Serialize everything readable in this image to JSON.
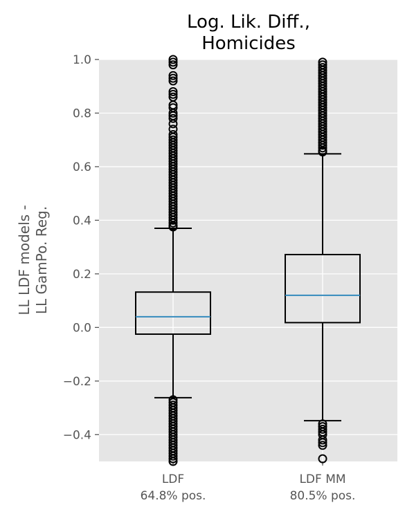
{
  "chart_data": {
    "type": "box",
    "title_lines": [
      "Log. Lik. Diff.,",
      "Homicides"
    ],
    "ylabel_lines": [
      "LL LDF models -",
      "LL GamPo. Reg."
    ],
    "ylim": [
      -0.5,
      1.0
    ],
    "yticks": [
      {
        "value": 1.0,
        "label": "1.0"
      },
      {
        "value": 0.8,
        "label": "0.8"
      },
      {
        "value": 0.6,
        "label": "0.6"
      },
      {
        "value": 0.4,
        "label": "0.4"
      },
      {
        "value": 0.2,
        "label": "0.2"
      },
      {
        "value": 0.0,
        "label": "0.0"
      },
      {
        "value": -0.2,
        "label": "−0.2"
      },
      {
        "value": -0.4,
        "label": "−0.4"
      }
    ],
    "grid": true,
    "colors": {
      "background": "#e5e5e5",
      "grid": "#ffffff",
      "box": "#000000",
      "median": "#348abd",
      "tick_text": "#555555"
    },
    "boxes": [
      {
        "label_lines": [
          "LDF",
          "64.8% pos."
        ],
        "q1": -0.025,
        "median": 0.04,
        "q3": 0.132,
        "whisker_low": -0.262,
        "whisker_high": 0.37,
        "outliers": [
          1.0,
          0.99,
          0.98,
          0.94,
          0.93,
          0.92,
          0.88,
          0.87,
          0.86,
          0.83,
          0.82,
          0.8,
          0.79,
          0.78,
          0.76,
          0.74,
          0.72,
          0.71,
          0.7,
          0.69,
          0.68,
          0.67,
          0.66,
          0.65,
          0.64,
          0.63,
          0.62,
          0.61,
          0.6,
          0.59,
          0.58,
          0.57,
          0.56,
          0.55,
          0.54,
          0.53,
          0.52,
          0.51,
          0.5,
          0.49,
          0.48,
          0.47,
          0.46,
          0.45,
          0.44,
          0.43,
          0.42,
          0.41,
          0.4,
          0.39,
          0.38,
          0.375,
          -0.27,
          -0.28,
          -0.29,
          -0.3,
          -0.31,
          -0.32,
          -0.33,
          -0.34,
          -0.35,
          -0.36,
          -0.37,
          -0.38,
          -0.39,
          -0.4,
          -0.41,
          -0.42,
          -0.43,
          -0.44,
          -0.45,
          -0.46,
          -0.47,
          -0.48,
          -0.49,
          -0.5
        ]
      },
      {
        "label_lines": [
          "LDF MM",
          "80.5% pos."
        ],
        "q1": 0.018,
        "median": 0.12,
        "q3": 0.272,
        "whisker_low": -0.348,
        "whisker_high": 0.648,
        "outliers": [
          0.99,
          0.98,
          0.97,
          0.96,
          0.95,
          0.94,
          0.93,
          0.92,
          0.91,
          0.9,
          0.89,
          0.88,
          0.87,
          0.86,
          0.85,
          0.84,
          0.83,
          0.82,
          0.81,
          0.8,
          0.79,
          0.78,
          0.77,
          0.76,
          0.75,
          0.74,
          0.73,
          0.72,
          0.71,
          0.7,
          0.69,
          0.68,
          0.67,
          0.66,
          0.655,
          -0.36,
          -0.37,
          -0.38,
          -0.39,
          -0.4,
          -0.42,
          -0.43,
          -0.44,
          -0.49
        ]
      }
    ]
  }
}
